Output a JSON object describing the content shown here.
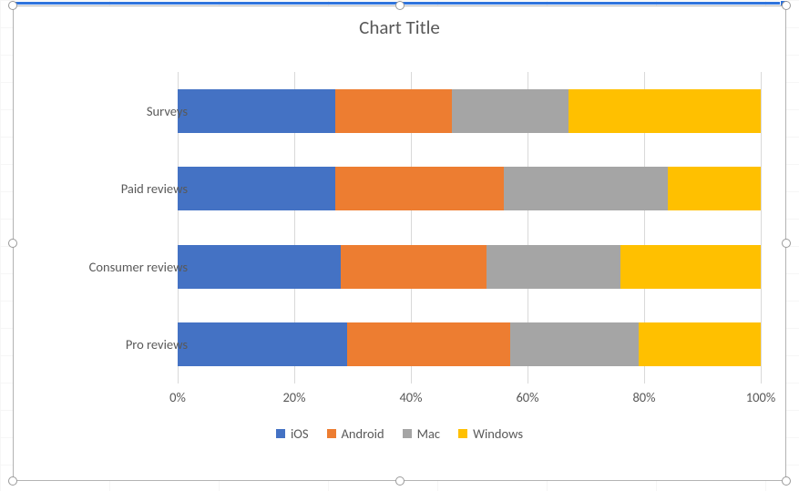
{
  "chart": {
    "type": "bar-stacked-100",
    "title": "Chart Title",
    "title_fontsize": 21,
    "title_color": "#595959",
    "background_color": "#ffffff",
    "grid_color": "#d9d9d9",
    "axis_label_color": "#595959",
    "axis_label_fontsize": 14.5,
    "xlim": [
      0,
      100
    ],
    "xtick_step": 20,
    "xtick_labels": [
      "0%",
      "20%",
      "40%",
      "60%",
      "80%",
      "100%"
    ],
    "categories_top_to_bottom": [
      "Surveys",
      "Paid reviews",
      "Consumer reviews",
      "Pro reviews"
    ],
    "series": [
      {
        "name": "iOS",
        "color": "#4472c4"
      },
      {
        "name": "Android",
        "color": "#ed7d31"
      },
      {
        "name": "Mac",
        "color": "#a5a5a5"
      },
      {
        "name": "Windows",
        "color": "#ffc000"
      }
    ],
    "values_pct": {
      "Surveys": [
        27,
        20,
        20,
        33
      ],
      "Paid reviews": [
        27,
        29,
        28,
        16
      ],
      "Consumer reviews": [
        28,
        25,
        23,
        24
      ],
      "Pro reviews": [
        29,
        28,
        22,
        21
      ]
    },
    "bar_height_ratio": 0.56,
    "legend_position": "bottom"
  },
  "selection": {
    "frame_border_color": "#b3b3b3",
    "active_edge_color": "#2f74dd",
    "handle_fill": "#ffffff",
    "handle_border": "#9a9a9a"
  }
}
